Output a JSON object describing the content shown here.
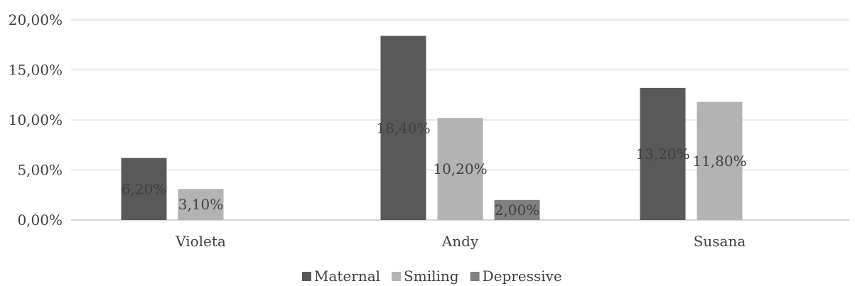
{
  "chart_data": {
    "type": "bar",
    "categories": [
      "Violeta",
      "Andy",
      "Susana"
    ],
    "series": [
      {
        "name": "Maternal",
        "values": [
          6.2,
          18.4,
          13.2
        ],
        "labels": [
          "6,20%",
          "18,40%",
          "13,20%"
        ],
        "color": "#595959"
      },
      {
        "name": "Smiling",
        "values": [
          3.1,
          10.2,
          11.8
        ],
        "labels": [
          "3,10%",
          "10,20%",
          "11,80%"
        ],
        "color": "#b3b3b3"
      },
      {
        "name": "Depressive",
        "values": [
          null,
          2.0,
          null
        ],
        "labels": [
          "",
          "2,00%",
          ""
        ],
        "color": "#808080"
      }
    ],
    "y_ticks": [
      "0,00%",
      "5,00%",
      "10,00%",
      "15,00%",
      "20,00%"
    ],
    "ylim": [
      0,
      20
    ],
    "grid": true,
    "legend": "bottom",
    "title": "",
    "xlabel": "",
    "ylabel": ""
  }
}
